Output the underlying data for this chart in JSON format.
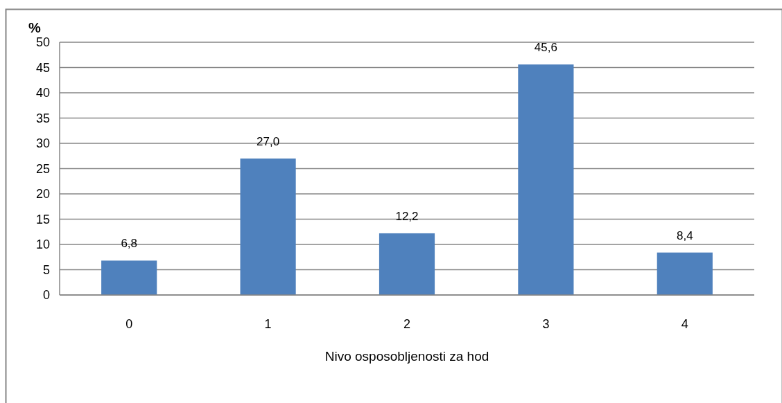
{
  "chart_data": {
    "type": "bar",
    "xlabel": "Nivo osposobljenosti za hod",
    "ylabel": "%",
    "categories": [
      "0",
      "1",
      "2",
      "3",
      "4"
    ],
    "values": [
      6.8,
      27.0,
      12.2,
      45.6,
      8.4
    ],
    "value_labels": [
      "6,8",
      "27,0",
      "12,2",
      "45,6",
      "8,4"
    ],
    "color": "#4f81bd",
    "ylim": [
      0,
      50
    ],
    "yticks": [
      0,
      5,
      10,
      15,
      20,
      25,
      30,
      35,
      40,
      45,
      50
    ],
    "grid": "y"
  }
}
